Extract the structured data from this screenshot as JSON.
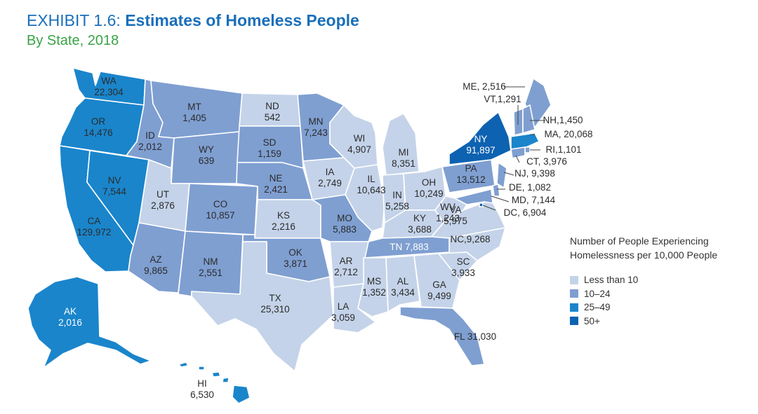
{
  "header": {
    "title_prefix": "EXHIBIT 1.6: ",
    "title_main": "Estimates of Homeless People",
    "subtitle": "By State, 2018"
  },
  "colors": {
    "lt10": "#c4d3e9",
    "b10_24": "#7f9fd1",
    "b25_49": "#1a85cb",
    "gt50": "#0d62b1",
    "title_blue": "#1a6fba",
    "subtitle_green": "#3aa346"
  },
  "legend": {
    "title": "Number of People Experiencing Homelessness per 10,000 People",
    "items": [
      {
        "key": "lt10",
        "label": "Less than 10"
      },
      {
        "key": "b10_24",
        "label": "10–24"
      },
      {
        "key": "b25_49",
        "label": "25–49"
      },
      {
        "key": "gt50",
        "label": "50+"
      }
    ]
  },
  "states": [
    {
      "abbr": "WA",
      "value": "22,304",
      "category": "b25_49"
    },
    {
      "abbr": "OR",
      "value": "14,476",
      "category": "b25_49"
    },
    {
      "abbr": "CA",
      "value": "129,972",
      "category": "b25_49"
    },
    {
      "abbr": "NV",
      "value": "7,544",
      "category": "b25_49"
    },
    {
      "abbr": "ID",
      "value": "2,012",
      "category": "b10_24"
    },
    {
      "abbr": "MT",
      "value": "1,405",
      "category": "b10_24"
    },
    {
      "abbr": "WY",
      "value": "639",
      "category": "b10_24"
    },
    {
      "abbr": "UT",
      "value": "2,876",
      "category": "lt10"
    },
    {
      "abbr": "AZ",
      "value": "9,865",
      "category": "b10_24"
    },
    {
      "abbr": "CO",
      "value": "10,857",
      "category": "b10_24"
    },
    {
      "abbr": "NM",
      "value": "2,551",
      "category": "b10_24"
    },
    {
      "abbr": "ND",
      "value": "542",
      "category": "lt10"
    },
    {
      "abbr": "SD",
      "value": "1,159",
      "category": "b10_24"
    },
    {
      "abbr": "NE",
      "value": "2,421",
      "category": "b10_24"
    },
    {
      "abbr": "KS",
      "value": "2,216",
      "category": "lt10"
    },
    {
      "abbr": "OK",
      "value": "3,871",
      "category": "b10_24"
    },
    {
      "abbr": "TX",
      "value": "25,310",
      "category": "lt10"
    },
    {
      "abbr": "MN",
      "value": "7,243",
      "category": "b10_24"
    },
    {
      "abbr": "IA",
      "value": "2,749",
      "category": "lt10"
    },
    {
      "abbr": "MO",
      "value": "5,883",
      "category": "b10_24"
    },
    {
      "abbr": "AR",
      "value": "2,712",
      "category": "lt10"
    },
    {
      "abbr": "LA",
      "value": "3,059",
      "category": "lt10"
    },
    {
      "abbr": "WI",
      "value": "4,907",
      "category": "lt10"
    },
    {
      "abbr": "IL",
      "value": "10,643",
      "category": "lt10"
    },
    {
      "abbr": "MI",
      "value": "8,351",
      "category": "lt10"
    },
    {
      "abbr": "IN",
      "value": "5,258",
      "category": "lt10"
    },
    {
      "abbr": "OH",
      "value": "10,249",
      "category": "lt10"
    },
    {
      "abbr": "KY",
      "value": "3,688",
      "category": "lt10"
    },
    {
      "abbr": "TN",
      "value": "7,883",
      "category": "b10_24"
    },
    {
      "abbr": "MS",
      "value": "1,352",
      "category": "lt10"
    },
    {
      "abbr": "AL",
      "value": "3,434",
      "category": "lt10"
    },
    {
      "abbr": "GA",
      "value": "9,499",
      "category": "lt10"
    },
    {
      "abbr": "FL",
      "value": "31,030",
      "category": "b10_24"
    },
    {
      "abbr": "SC",
      "value": "3,933",
      "category": "lt10"
    },
    {
      "abbr": "NC",
      "value": "9,268",
      "category": "lt10"
    },
    {
      "abbr": "VA",
      "value": "5,975",
      "category": "lt10"
    },
    {
      "abbr": "WV",
      "value": "1,243",
      "category": "lt10"
    },
    {
      "abbr": "PA",
      "value": "13,512",
      "category": "b10_24"
    },
    {
      "abbr": "NY",
      "value": "91,897",
      "category": "gt50"
    },
    {
      "abbr": "ME",
      "value": "2,516",
      "category": "b10_24"
    },
    {
      "abbr": "VT",
      "value": "1,291",
      "category": "b10_24"
    },
    {
      "abbr": "NH",
      "value": "1,450",
      "category": "b10_24"
    },
    {
      "abbr": "MA",
      "value": "20,068",
      "category": "b25_49"
    },
    {
      "abbr": "RI",
      "value": "1,101",
      "category": "b10_24"
    },
    {
      "abbr": "CT",
      "value": "3,976",
      "category": "b10_24"
    },
    {
      "abbr": "NJ",
      "value": "9,398",
      "category": "b10_24"
    },
    {
      "abbr": "DE",
      "value": "1,082",
      "category": "b10_24"
    },
    {
      "abbr": "MD",
      "value": "7,144",
      "category": "b10_24"
    },
    {
      "abbr": "DC",
      "value": "6,904",
      "category": "gt50"
    },
    {
      "abbr": "AK",
      "value": "2,016",
      "category": "b25_49"
    },
    {
      "abbr": "HI",
      "value": "6,530",
      "category": "b25_49"
    }
  ]
}
